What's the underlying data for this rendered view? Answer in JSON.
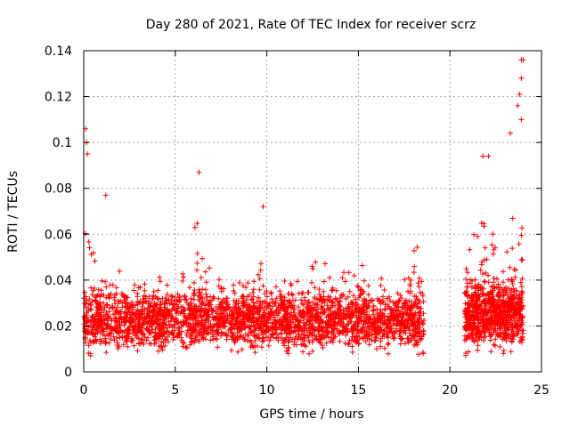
{
  "chart_data": {
    "type": "scatter",
    "title": "Day 280 of 2021, Rate Of TEC Index for receiver scrz",
    "xlabel": "GPS time / hours",
    "ylabel": "ROTI / TECUs",
    "xlim": [
      0,
      25
    ],
    "ylim": [
      0,
      0.14
    ],
    "xticks": [
      0,
      5,
      10,
      15,
      20,
      25
    ],
    "xtick_labels": [
      "0",
      "5",
      "10",
      "15",
      "20",
      "25"
    ],
    "yticks": [
      0,
      0.02,
      0.04,
      0.06,
      0.08,
      0.1,
      0.12,
      0.14
    ],
    "ytick_labels": [
      "0",
      "0.02",
      "0.04",
      "0.06",
      "0.08",
      "0.1",
      "0.12",
      "0.14"
    ],
    "grid": true,
    "marker": "+",
    "color": "#ff0000",
    "series": [
      {
        "name": "ROTI",
        "segments": [
          {
            "x_start": 0.0,
            "x_end": 18.6,
            "typical_range": [
              0.01,
              0.04
            ]
          },
          {
            "x_start": 20.8,
            "x_end": 24.0,
            "typical_range": [
              0.01,
              0.045
            ]
          }
        ],
        "notable_points": [
          {
            "x": 0.1,
            "y": 0.106
          },
          {
            "x": 0.15,
            "y": 0.1
          },
          {
            "x": 0.2,
            "y": 0.095
          },
          {
            "x": 1.2,
            "y": 0.077
          },
          {
            "x": 6.3,
            "y": 0.087
          },
          {
            "x": 9.8,
            "y": 0.072
          },
          {
            "x": 21.8,
            "y": 0.094
          },
          {
            "x": 22.1,
            "y": 0.094
          },
          {
            "x": 23.3,
            "y": 0.104
          },
          {
            "x": 23.7,
            "y": 0.116
          },
          {
            "x": 23.8,
            "y": 0.121
          },
          {
            "x": 23.9,
            "y": 0.128
          },
          {
            "x": 23.9,
            "y": 0.136
          },
          {
            "x": 24.0,
            "y": 0.136
          },
          {
            "x": 23.9,
            "y": 0.11
          }
        ]
      }
    ]
  }
}
